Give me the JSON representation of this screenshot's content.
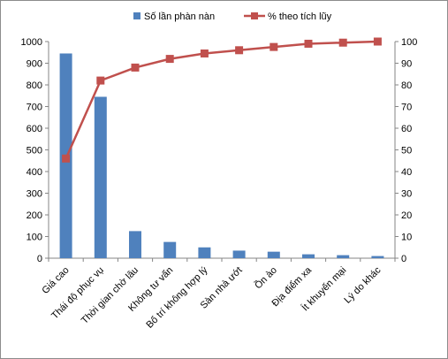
{
  "chart_data": {
    "type": "bar",
    "categories": [
      "Giá cao",
      "Thái độ phục vụ",
      "Thời gian chờ lâu",
      "Không tư vấn",
      "Bố trí không hợp lý",
      "Sàn nhà ướt",
      "Ồn ào",
      "Địa điểm xa",
      "Ít khuyến mại",
      "Lý do khác"
    ],
    "series": [
      {
        "name": "Số lần phàn nàn",
        "type": "bar",
        "axis": "left",
        "color": "#4f81bd",
        "values": [
          945,
          745,
          125,
          75,
          50,
          35,
          30,
          18,
          14,
          10
        ]
      },
      {
        "name": "% theo tích lũy",
        "type": "line",
        "axis": "right",
        "color": "#c0504d",
        "values": [
          46,
          82,
          88,
          92,
          94.5,
          96,
          97.5,
          99,
          99.5,
          100
        ]
      }
    ],
    "y_left": {
      "min": 0,
      "max": 1000,
      "step": 100,
      "ticks": [
        "0",
        "100",
        "200",
        "300",
        "400",
        "500",
        "600",
        "700",
        "800",
        "900",
        "1000"
      ]
    },
    "y_right": {
      "min": 0,
      "max": 100,
      "step": 10,
      "ticks": [
        "0",
        "10",
        "20",
        "30",
        "40",
        "50",
        "60",
        "70",
        "80",
        "90",
        "100"
      ]
    },
    "grid": false,
    "legend_position": "top"
  }
}
